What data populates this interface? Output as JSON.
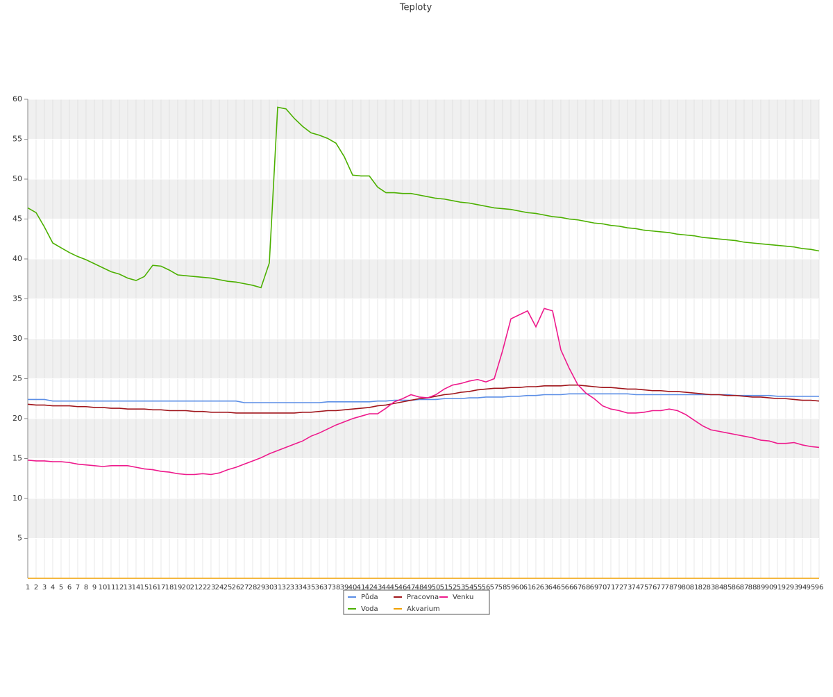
{
  "chart_data": {
    "type": "line",
    "title": "Teploty",
    "categories": [
      1,
      2,
      3,
      4,
      5,
      6,
      7,
      8,
      9,
      10,
      11,
      12,
      13,
      14,
      15,
      16,
      17,
      18,
      19,
      20,
      21,
      22,
      23,
      24,
      25,
      26,
      27,
      28,
      29,
      30,
      31,
      32,
      33,
      34,
      35,
      36,
      37,
      38,
      39,
      40,
      41,
      42,
      43,
      44,
      45,
      46,
      47,
      48,
      49,
      50,
      51,
      52,
      53,
      54,
      55,
      56,
      57,
      58,
      59,
      60,
      61,
      62,
      63,
      64,
      65,
      66,
      67,
      68,
      69,
      70,
      71,
      72,
      73,
      74,
      75,
      76,
      77,
      78,
      79,
      80,
      81,
      82,
      83,
      84,
      85,
      86,
      87,
      88,
      89,
      90,
      91,
      92,
      93,
      94,
      95,
      96
    ],
    "ylim": [
      0,
      60
    ],
    "yticks": [
      5,
      10,
      15,
      20,
      25,
      30,
      35,
      40,
      45,
      50,
      55,
      60
    ],
    "grid": true,
    "series": [
      {
        "name": "Půda",
        "color": "#5b8ee6",
        "values": [
          22.4,
          22.4,
          22.4,
          22.2,
          22.2,
          22.2,
          22.2,
          22.2,
          22.2,
          22.2,
          22.2,
          22.2,
          22.2,
          22.2,
          22.2,
          22.2,
          22.2,
          22.2,
          22.2,
          22.2,
          22.2,
          22.2,
          22.2,
          22.2,
          22.2,
          22.2,
          22.0,
          22.0,
          22.0,
          22.0,
          22.0,
          22.0,
          22.0,
          22.0,
          22.0,
          22.0,
          22.1,
          22.1,
          22.1,
          22.1,
          22.1,
          22.1,
          22.2,
          22.2,
          22.3,
          22.3,
          22.3,
          22.4,
          22.4,
          22.4,
          22.5,
          22.5,
          22.5,
          22.6,
          22.6,
          22.7,
          22.7,
          22.7,
          22.8,
          22.8,
          22.9,
          22.9,
          23.0,
          23.0,
          23.0,
          23.1,
          23.1,
          23.1,
          23.1,
          23.1,
          23.1,
          23.1,
          23.1,
          23.0,
          23.0,
          23.0,
          23.0,
          23.0,
          23.0,
          23.0,
          23.0,
          23.0,
          23.0,
          23.0,
          23.0,
          22.9,
          22.9,
          22.9,
          22.9,
          22.9,
          22.8,
          22.8,
          22.8,
          22.8,
          22.8,
          22.8
        ]
      },
      {
        "name": "Voda",
        "color": "#4cb000",
        "values": [
          46.4,
          45.8,
          44,
          42,
          41.4,
          40.8,
          40.3,
          39.9,
          39.4,
          38.9,
          38.4,
          38.1,
          37.6,
          37.3,
          37.8,
          39.2,
          39.1,
          38.6,
          38.0,
          37.9,
          37.8,
          37.7,
          37.6,
          37.4,
          37.2,
          37.1,
          36.9,
          36.7,
          36.4,
          39.5,
          59,
          58.8,
          57.6,
          56.6,
          55.8,
          55.5,
          55.1,
          54.5,
          52.8,
          50.5,
          50.4,
          50.4,
          49,
          48.3,
          48.3,
          48.2,
          48.2,
          48,
          47.8,
          47.6,
          47.5,
          47.3,
          47.1,
          47,
          46.8,
          46.6,
          46.4,
          46.3,
          46.2,
          46,
          45.8,
          45.7,
          45.5,
          45.3,
          45.2,
          45,
          44.9,
          44.7,
          44.5,
          44.4,
          44.2,
          44.1,
          43.9,
          43.8,
          43.6,
          43.5,
          43.4,
          43.3,
          43.1,
          43,
          42.9,
          42.7,
          42.6,
          42.5,
          42.4,
          42.3,
          42.1,
          42,
          41.9,
          41.8,
          41.7,
          41.6,
          41.5,
          41.3,
          41.2,
          41
        ]
      },
      {
        "name": "Pracovna",
        "color": "#a0151b",
        "values": [
          21.8,
          21.7,
          21.7,
          21.6,
          21.6,
          21.6,
          21.5,
          21.5,
          21.4,
          21.4,
          21.3,
          21.3,
          21.2,
          21.2,
          21.2,
          21.1,
          21.1,
          21.0,
          21.0,
          21.0,
          20.9,
          20.9,
          20.8,
          20.8,
          20.8,
          20.7,
          20.7,
          20.7,
          20.7,
          20.7,
          20.7,
          20.7,
          20.7,
          20.8,
          20.8,
          20.9,
          21.0,
          21.0,
          21.1,
          21.2,
          21.3,
          21.4,
          21.6,
          21.7,
          21.9,
          22.1,
          22.3,
          22.5,
          22.6,
          22.8,
          23.0,
          23.1,
          23.3,
          23.4,
          23.6,
          23.7,
          23.8,
          23.8,
          23.9,
          23.9,
          24.0,
          24.0,
          24.1,
          24.1,
          24.1,
          24.2,
          24.2,
          24.1,
          24.0,
          23.9,
          23.9,
          23.8,
          23.7,
          23.7,
          23.6,
          23.5,
          23.5,
          23.4,
          23.4,
          23.3,
          23.2,
          23.1,
          23.0,
          23.0,
          22.9,
          22.9,
          22.8,
          22.7,
          22.7,
          22.6,
          22.5,
          22.5,
          22.4,
          22.3,
          22.3,
          22.2
        ]
      },
      {
        "name": "Akvarium",
        "color": "#f0a000",
        "values": [
          0,
          0,
          0,
          0,
          0,
          0,
          0,
          0,
          0,
          0,
          0,
          0,
          0,
          0,
          0,
          0,
          0,
          0,
          0,
          0,
          0,
          0,
          0,
          0,
          0,
          0,
          0,
          0,
          0,
          0,
          0,
          0,
          0,
          0,
          0,
          0,
          0,
          0,
          0,
          0,
          0,
          0,
          0,
          0,
          0,
          0,
          0,
          0,
          0,
          0,
          0,
          0,
          0,
          0,
          0,
          0,
          0,
          0,
          0,
          0,
          0,
          0,
          0,
          0,
          0,
          0,
          0,
          0,
          0,
          0,
          0,
          0,
          0,
          0,
          0,
          0,
          0,
          0,
          0,
          0,
          0,
          0,
          0,
          0,
          0,
          0,
          0,
          0,
          0,
          0,
          0,
          0,
          0,
          0,
          0,
          0
        ]
      },
      {
        "name": "Venku",
        "color": "#ee1a8c",
        "values": [
          14.8,
          14.7,
          14.7,
          14.6,
          14.6,
          14.5,
          14.3,
          14.2,
          14.1,
          14.0,
          14.1,
          14.1,
          14.1,
          13.9,
          13.7,
          13.6,
          13.4,
          13.3,
          13.1,
          13.0,
          13.0,
          13.1,
          13.0,
          13.2,
          13.6,
          13.9,
          14.3,
          14.7,
          15.1,
          15.6,
          16.0,
          16.4,
          16.8,
          17.2,
          17.8,
          18.2,
          18.7,
          19.2,
          19.6,
          20.0,
          20.3,
          20.6,
          20.6,
          21.3,
          22.1,
          22.5,
          23.0,
          22.7,
          22.6,
          23.0,
          23.7,
          24.2,
          24.4,
          24.7,
          24.9,
          24.6,
          25.0,
          28.5,
          32.5,
          33.0,
          33.5,
          31.5,
          33.8,
          33.5,
          28.6,
          26.3,
          24.3,
          23.2,
          22.5,
          21.6,
          21.2,
          21.0,
          20.7,
          20.7,
          20.8,
          21.0,
          21.0,
          21.2,
          21.0,
          20.5,
          19.8,
          19.1,
          18.6,
          18.4,
          18.2,
          18.0,
          17.8,
          17.6,
          17.3,
          17.2,
          16.9,
          16.9,
          17.0,
          16.7,
          16.5,
          16.4
        ]
      }
    ]
  }
}
